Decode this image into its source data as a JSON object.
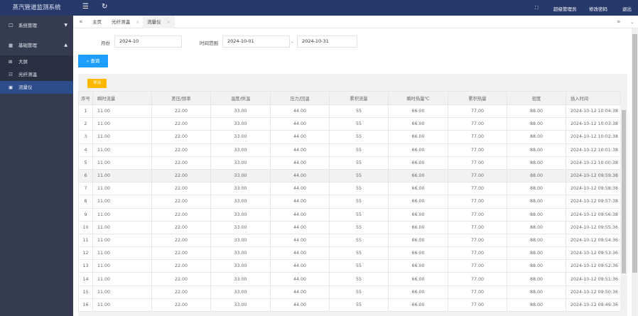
{
  "app": {
    "title": "蒸汽管道监测系统"
  },
  "topbar": {
    "fullscreen_icon": "expand-icon",
    "user": "超级管理员",
    "change_password": "修改密码",
    "logout": "退出"
  },
  "sidebar": {
    "items": [
      {
        "label": "系统管理",
        "icon": "monitor-icon"
      },
      {
        "label": "基础管理",
        "icon": "building-icon"
      }
    ],
    "sub_items": [
      {
        "label": "大屏",
        "icon": "grid-icon"
      },
      {
        "label": "光纤测温",
        "icon": "list-icon"
      },
      {
        "label": "流量仪",
        "icon": "meter-icon"
      }
    ]
  },
  "tabs": [
    {
      "label": "主页"
    },
    {
      "label": "光纤测温"
    },
    {
      "label": "流量仪"
    }
  ],
  "form": {
    "month_label": "月份",
    "month_value": "2024-10",
    "range_label": "时间范围",
    "start": "2024-10-01",
    "sep": "-",
    "end": "2024-10-31",
    "query": "查询"
  },
  "toolbar": {
    "export": "导出"
  },
  "table": {
    "headers": [
      "序号",
      "瞬时流量",
      "差压/频率",
      "温度/供温",
      "压力/回温",
      "累积流量",
      "瞬时热量℃",
      "累积热量",
      "密度",
      "插入时间"
    ],
    "rows": [
      [
        "1",
        "11.00",
        "22.00",
        "33.00",
        "44.00",
        "55",
        "66.00",
        "77.00",
        "88.00",
        "2024-10-12 10:04:38"
      ],
      [
        "2",
        "11.00",
        "22.00",
        "33.00",
        "44.00",
        "55",
        "66.00",
        "77.00",
        "88.00",
        "2024-10-12 10:03:38"
      ],
      [
        "3",
        "11.00",
        "22.00",
        "33.00",
        "44.00",
        "55",
        "66.00",
        "77.00",
        "88.00",
        "2024-10-12 10:02:38"
      ],
      [
        "4",
        "11.00",
        "22.00",
        "33.00",
        "44.00",
        "55",
        "66.00",
        "77.00",
        "88.00",
        "2024-10-12 10:01:38"
      ],
      [
        "5",
        "11.00",
        "22.00",
        "33.00",
        "44.00",
        "55",
        "66.00",
        "77.00",
        "88.00",
        "2024-10-12 10:00:38"
      ],
      [
        "6",
        "11.00",
        "22.00",
        "33.00",
        "44.00",
        "55",
        "66.00",
        "77.00",
        "88.00",
        "2024-10-12 09:59:38"
      ],
      [
        "7",
        "11.00",
        "22.00",
        "33.00",
        "44.00",
        "55",
        "66.00",
        "77.00",
        "88.00",
        "2024-10-12 09:58:38"
      ],
      [
        "8",
        "11.00",
        "22.00",
        "33.00",
        "44.00",
        "55",
        "66.00",
        "77.00",
        "88.00",
        "2024-10-12 09:57:38"
      ],
      [
        "9",
        "11.00",
        "22.00",
        "33.00",
        "44.00",
        "55",
        "66.00",
        "77.00",
        "88.00",
        "2024-10-12 09:56:38"
      ],
      [
        "10",
        "11.00",
        "22.00",
        "33.00",
        "44.00",
        "55",
        "66.00",
        "77.00",
        "88.00",
        "2024-10-12 09:55:36"
      ],
      [
        "11",
        "11.00",
        "22.00",
        "33.00",
        "44.00",
        "55",
        "66.00",
        "77.00",
        "88.00",
        "2024-10-12 09:54:36"
      ],
      [
        "12",
        "11.00",
        "22.00",
        "33.00",
        "44.00",
        "55",
        "66.00",
        "77.00",
        "88.00",
        "2024-10-12 09:53:36"
      ],
      [
        "13",
        "11.00",
        "22.00",
        "33.00",
        "44.00",
        "55",
        "66.00",
        "77.00",
        "88.00",
        "2024-10-12 09:52:36"
      ],
      [
        "14",
        "11.00",
        "22.00",
        "33.00",
        "44.00",
        "55",
        "66.00",
        "77.00",
        "88.00",
        "2024-10-12 09:51:36"
      ],
      [
        "15",
        "11.00",
        "22.00",
        "33.00",
        "44.00",
        "55",
        "66.00",
        "77.00",
        "88.00",
        "2024-10-12 09:50:36"
      ],
      [
        "16",
        "11.00",
        "22.00",
        "33.00",
        "44.00",
        "55",
        "66.00",
        "77.00",
        "88.00",
        "2024-10-12 09:49:36"
      ]
    ]
  }
}
